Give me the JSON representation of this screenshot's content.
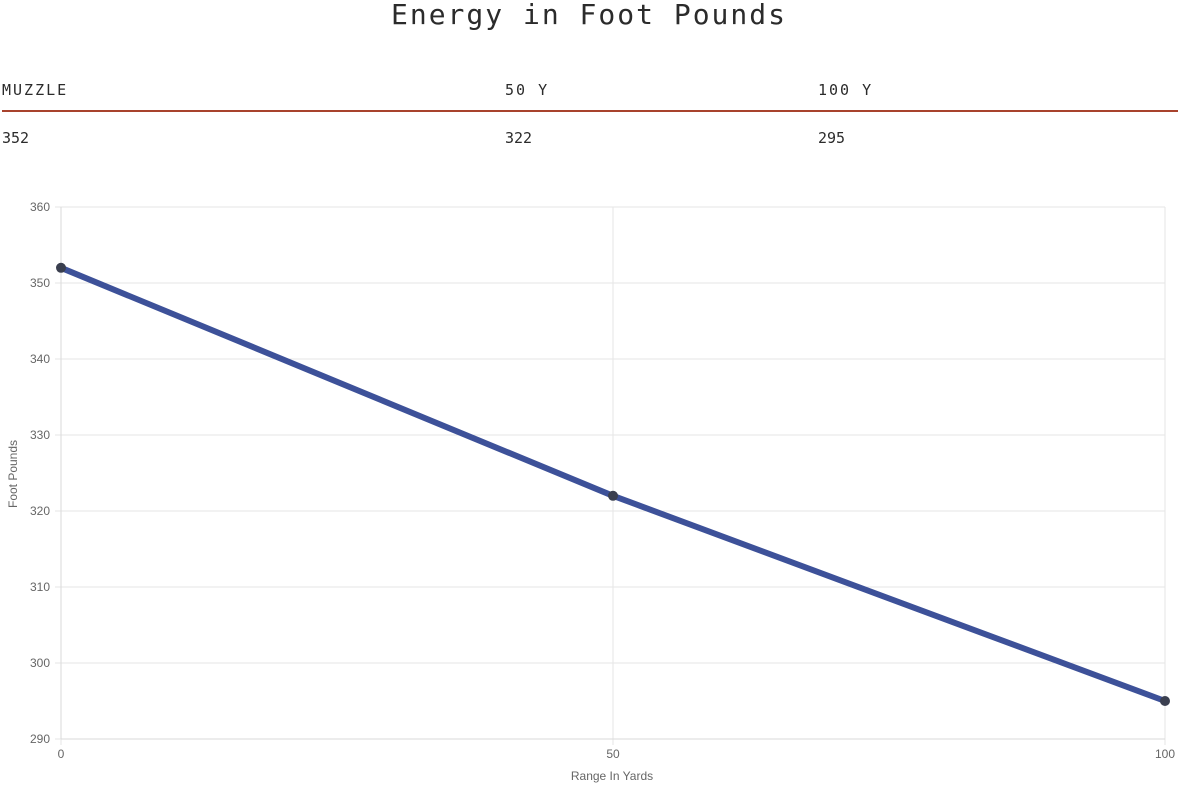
{
  "title": "Energy in Foot Pounds",
  "stats": {
    "headers": [
      "MUZZLE",
      "50 Y",
      "100 Y"
    ],
    "values": [
      "352",
      "322",
      "295"
    ]
  },
  "chart_data": {
    "type": "line",
    "x": [
      0,
      50,
      100
    ],
    "y": [
      352,
      322,
      295
    ],
    "xticks": [
      "0",
      "50",
      "100"
    ],
    "yticks": [
      "360",
      "350",
      "340",
      "330",
      "320",
      "310",
      "300",
      "290"
    ],
    "xlabel": "Range In Yards",
    "ylabel": "Foot Pounds",
    "xlim": [
      0,
      100
    ],
    "ylim": [
      290,
      360
    ],
    "grid": true,
    "line_color": "#3d5199",
    "point_color": "#3a3f4f",
    "grid_color": "#e6e6e6"
  }
}
